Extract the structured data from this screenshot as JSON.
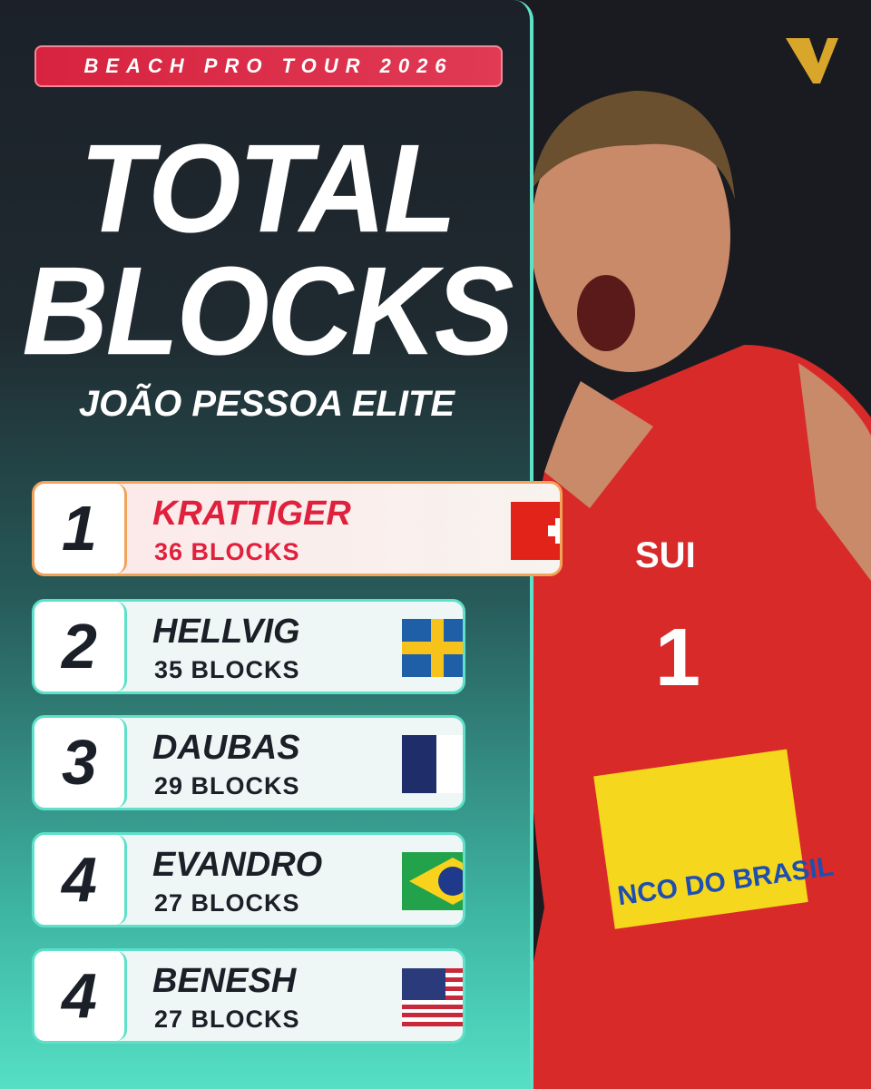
{
  "header": {
    "tag": "BEACH PRO TOUR 2026",
    "title_lines": [
      "TOTAL",
      "BLOCKS"
    ],
    "subtitle": "JOÃO PESSOA ELITE"
  },
  "leaderboard": {
    "rows": [
      {
        "rank": "1",
        "name": "KRATTIGER",
        "stat": "36 BLOCKS"
      },
      {
        "rank": "2",
        "name": "HELLVIG",
        "stat": "35 BLOCKS"
      },
      {
        "rank": "3",
        "name": "DAUBAS",
        "stat": "29 BLOCKS"
      },
      {
        "rank": "4",
        "name": "EVANDRO",
        "stat": "27 BLOCKS"
      },
      {
        "rank": "4",
        "name": "BENESH",
        "stat": "27 BLOCKS"
      }
    ]
  },
  "photo": {
    "jersey_country": "SUI",
    "jersey_number": "1",
    "sponsor": "NCO DO BRASIL"
  }
}
